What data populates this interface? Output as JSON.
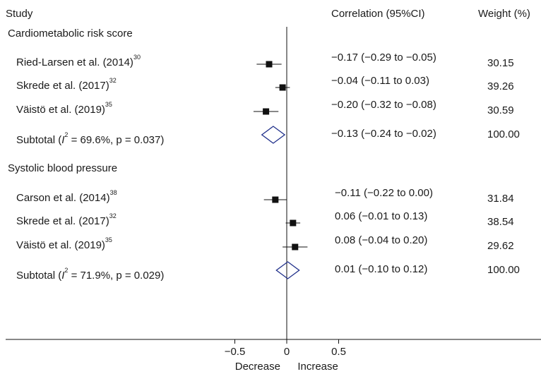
{
  "chart_data": {
    "type": "forest",
    "header": {
      "study": "Study",
      "ci": "Correlation (95%CI)",
      "weight": "Weight (%)"
    },
    "x_axis": {
      "range": [
        -0.7,
        0.7
      ],
      "ticks": [
        -0.5,
        0,
        0.5
      ],
      "tick_labels": [
        "−0.5",
        "0",
        "0.5"
      ],
      "left_label": "Decrease",
      "right_label": "Increase"
    },
    "groups": [
      {
        "name": "Cardiometabolic risk score",
        "studies": [
          {
            "label": "Ried-Larsen et al. (2014)",
            "ref": "30",
            "est": -0.17,
            "lo": -0.29,
            "hi": -0.05,
            "ci_text": "−0.17 (−0.29 to −0.05)",
            "weight": "30.15"
          },
          {
            "label": "Skrede et al. (2017)",
            "ref": "32",
            "est": -0.04,
            "lo": -0.11,
            "hi": 0.03,
            "ci_text": "−0.04 (−0.11 to 0.03)",
            "weight": "39.26"
          },
          {
            "label": "Väistö et al. (2019)",
            "ref": "35",
            "est": -0.2,
            "lo": -0.32,
            "hi": -0.08,
            "ci_text": "−0.20 (−0.32 to −0.08)",
            "weight": "30.59"
          }
        ],
        "subtotal": {
          "label_prefix": "Subtotal  (",
          "i2_symbol": "I",
          "i2_sup": "2",
          "label_suffix": " = 69.6%, p = 0.037)",
          "est": -0.13,
          "lo": -0.24,
          "hi": -0.02,
          "ci_text": "−0.13 (−0.24 to −0.02)",
          "weight": "100.00"
        }
      },
      {
        "name": "Systolic blood pressure",
        "studies": [
          {
            "label": "Carson et al. (2014)",
            "ref": "38",
            "est": -0.11,
            "lo": -0.22,
            "hi": 0.0,
            "ci_text": "−0.11 (−0.22 to 0.00)",
            "weight": "31.84"
          },
          {
            "label": "Skrede et al. (2017)",
            "ref": "32",
            "est": 0.06,
            "lo": -0.01,
            "hi": 0.13,
            "ci_text": "0.06 (−0.01 to 0.13)",
            "weight": "38.54"
          },
          {
            "label": "Väistö et al. (2019)",
            "ref": "35",
            "est": 0.08,
            "lo": -0.04,
            "hi": 0.2,
            "ci_text": "0.08 (−0.04 to 0.20)",
            "weight": "29.62"
          }
        ],
        "subtotal": {
          "label_prefix": "Subtotal  (",
          "i2_symbol": "I",
          "i2_sup": "2",
          "label_suffix": " = 71.9%, p = 0.029)",
          "est": 0.01,
          "lo": -0.1,
          "hi": 0.12,
          "ci_text": "0.01 (−0.10 to 0.12)",
          "weight": "100.00"
        }
      }
    ],
    "colors": {
      "marker": "#111111",
      "diamond": "#1f2f8a",
      "line": "#111111",
      "text": "#1a1a1a"
    }
  }
}
